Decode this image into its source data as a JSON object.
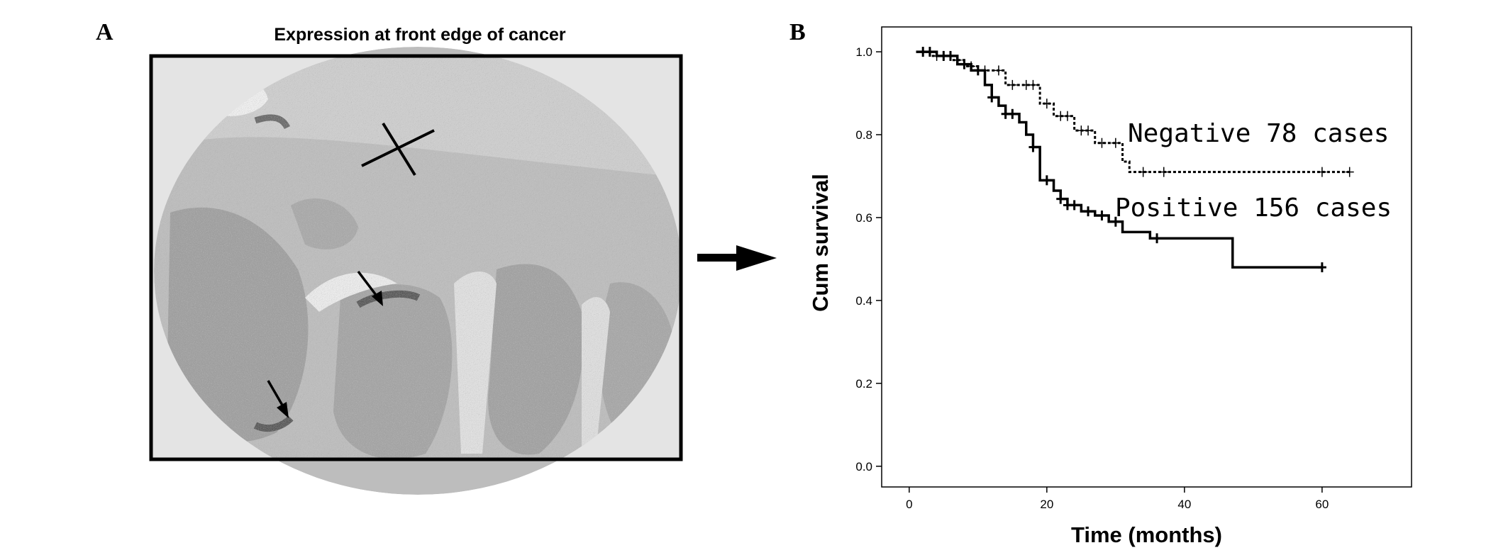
{
  "panels": {
    "a_letter": "A",
    "b_letter": "B"
  },
  "micrograph": {
    "title": "Expression at front edge of cancer"
  },
  "chart_data": {
    "type": "line",
    "title": "",
    "xlabel": "Time (months)",
    "ylabel": "Cum survival",
    "xlim": [
      -4,
      73
    ],
    "ylim": [
      -0.05,
      1.06
    ],
    "x_ticks": [
      0,
      20,
      40,
      60
    ],
    "y_ticks": [
      0.0,
      0.2,
      0.4,
      0.6,
      0.8,
      1.0
    ],
    "x_tick_labels": [
      "0",
      "20",
      "40",
      "60"
    ],
    "y_tick_labels": [
      "0.0",
      "0.2",
      "0.4",
      "0.6",
      "0.8",
      "1.0"
    ],
    "grid": false,
    "legend": "none",
    "series": [
      {
        "name": "Negative 78 cases",
        "style": "dotted",
        "color": "#000000",
        "steps": [
          [
            1,
            1.0
          ],
          [
            3,
            0.99
          ],
          [
            6,
            0.98
          ],
          [
            8,
            0.965
          ],
          [
            10,
            0.955
          ],
          [
            14,
            0.92
          ],
          [
            19,
            0.875
          ],
          [
            21,
            0.845
          ],
          [
            24,
            0.81
          ],
          [
            27,
            0.78
          ],
          [
            31,
            0.735
          ],
          [
            32,
            0.71
          ],
          [
            64,
            0.71
          ]
        ],
        "censored": [
          [
            2,
            1.0
          ],
          [
            4,
            0.99
          ],
          [
            5,
            0.99
          ],
          [
            7,
            0.98
          ],
          [
            9,
            0.965
          ],
          [
            11,
            0.955
          ],
          [
            13,
            0.955
          ],
          [
            15,
            0.92
          ],
          [
            17,
            0.92
          ],
          [
            18,
            0.92
          ],
          [
            20,
            0.875
          ],
          [
            22,
            0.845
          ],
          [
            23,
            0.845
          ],
          [
            25,
            0.81
          ],
          [
            26,
            0.81
          ],
          [
            28,
            0.78
          ],
          [
            30,
            0.78
          ],
          [
            34,
            0.71
          ],
          [
            37,
            0.71
          ],
          [
            60,
            0.71
          ],
          [
            64,
            0.71
          ]
        ]
      },
      {
        "name": "Positive 156 cases",
        "style": "solid",
        "color": "#000000",
        "steps": [
          [
            1,
            1.0
          ],
          [
            4,
            0.99
          ],
          [
            7,
            0.97
          ],
          [
            9,
            0.955
          ],
          [
            11,
            0.92
          ],
          [
            12,
            0.89
          ],
          [
            13,
            0.87
          ],
          [
            14,
            0.85
          ],
          [
            16,
            0.83
          ],
          [
            17,
            0.8
          ],
          [
            18,
            0.77
          ],
          [
            19,
            0.69
          ],
          [
            21,
            0.665
          ],
          [
            22,
            0.645
          ],
          [
            23,
            0.63
          ],
          [
            25,
            0.615
          ],
          [
            27,
            0.605
          ],
          [
            29,
            0.59
          ],
          [
            31,
            0.565
          ],
          [
            35,
            0.55
          ],
          [
            47,
            0.48
          ],
          [
            60,
            0.48
          ]
        ],
        "censored": [
          [
            2,
            1.0
          ],
          [
            3,
            1.0
          ],
          [
            5,
            0.99
          ],
          [
            6,
            0.99
          ],
          [
            8,
            0.97
          ],
          [
            10,
            0.955
          ],
          [
            12,
            0.89
          ],
          [
            14,
            0.85
          ],
          [
            15,
            0.85
          ],
          [
            18,
            0.77
          ],
          [
            20,
            0.69
          ],
          [
            22,
            0.645
          ],
          [
            23,
            0.63
          ],
          [
            24,
            0.63
          ],
          [
            26,
            0.615
          ],
          [
            28,
            0.605
          ],
          [
            30,
            0.59
          ],
          [
            36,
            0.55
          ],
          [
            60,
            0.48
          ]
        ]
      }
    ]
  }
}
